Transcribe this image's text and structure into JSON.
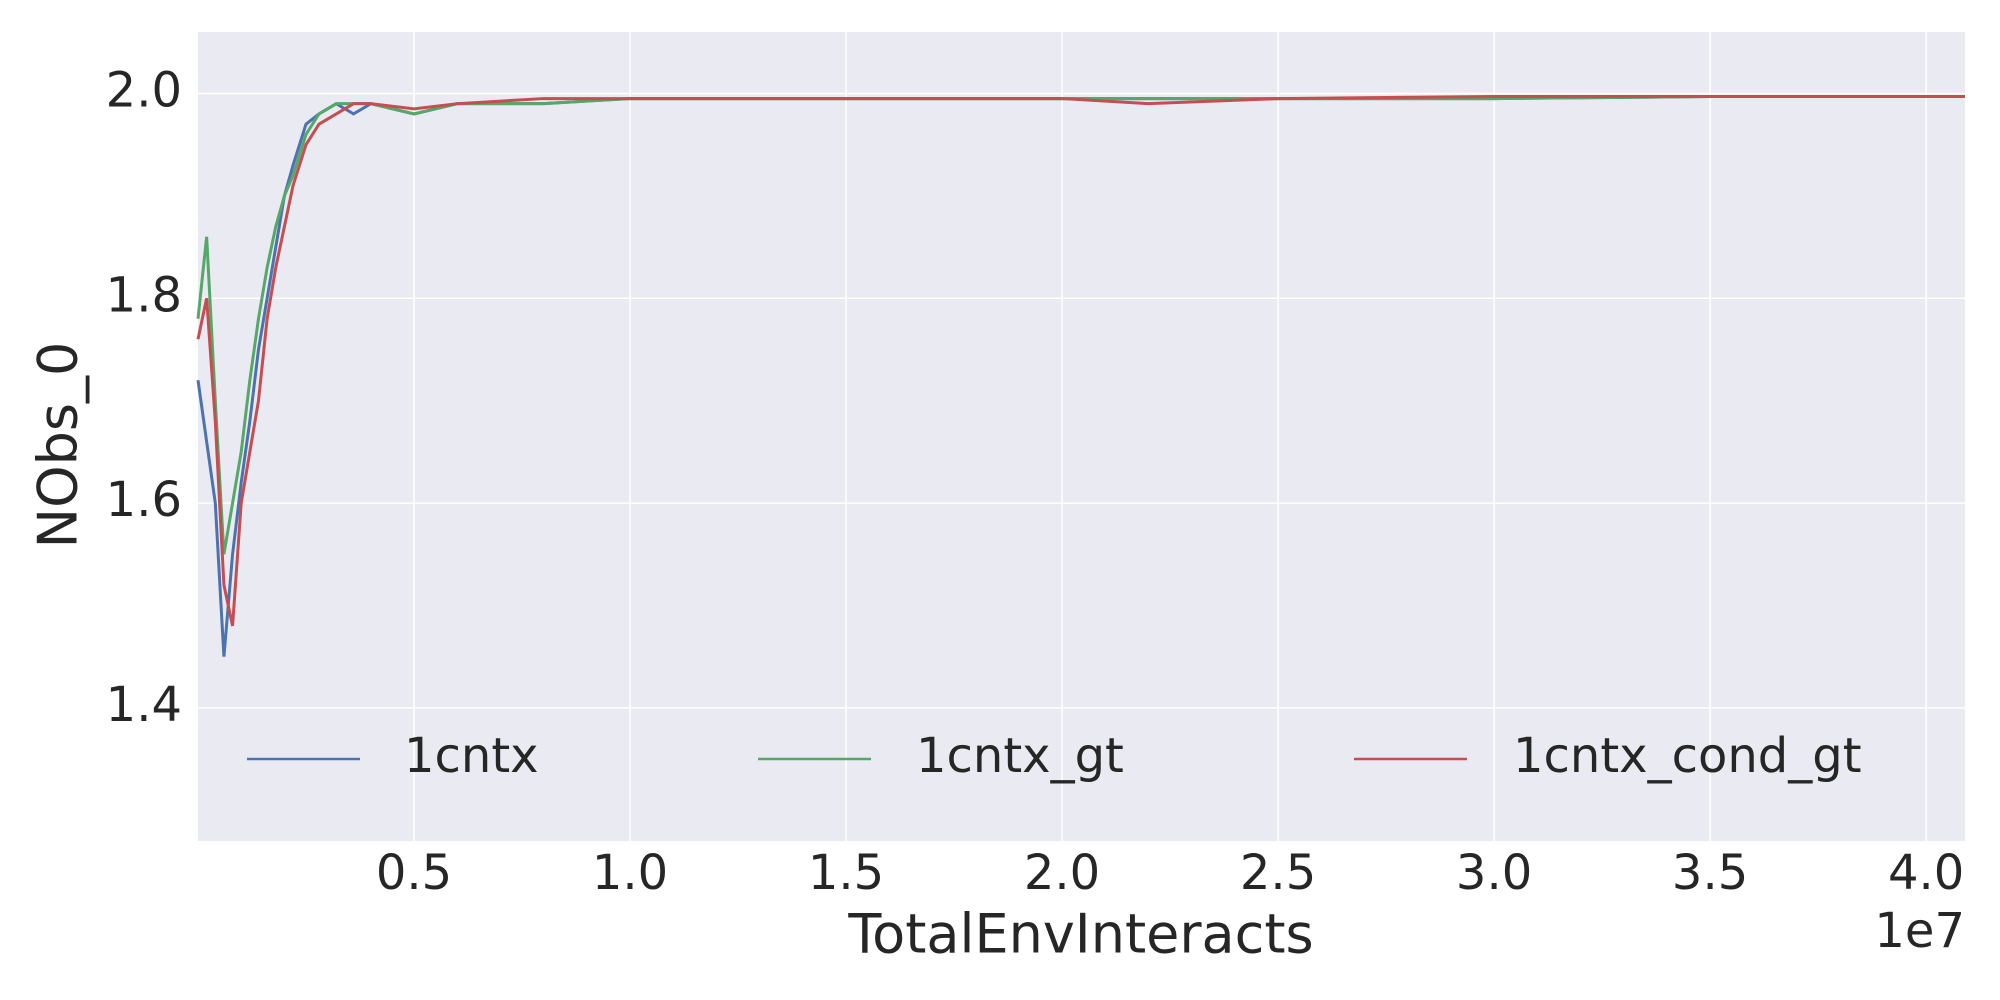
{
  "chart_data": {
    "type": "line",
    "x_label": "TotalEnvInteracts",
    "y_label": "NObs_0",
    "x_offset_label": "1e7",
    "x": [
      0,
      0.02,
      0.04,
      0.06,
      0.08,
      0.1,
      0.12,
      0.14,
      0.16,
      0.18,
      0.2,
      0.22,
      0.25,
      0.28,
      0.32,
      0.36,
      0.4,
      0.5,
      0.6,
      0.8,
      1.0,
      1.5,
      2.0,
      2.2,
      2.5,
      3.0,
      3.5,
      4.09
    ],
    "series": [
      {
        "name": "1cntx",
        "color": "#4c72b0",
        "values": [
          1.72,
          1.66,
          1.6,
          1.45,
          1.55,
          1.62,
          1.68,
          1.75,
          1.8,
          1.85,
          1.9,
          1.93,
          1.97,
          1.98,
          1.99,
          1.98,
          1.99,
          1.98,
          1.99,
          1.99,
          1.995,
          1.995,
          1.995,
          1.995,
          1.995,
          1.995,
          1.997,
          1.997
        ]
      },
      {
        "name": "1cntx_gt",
        "color": "#55a868",
        "values": [
          1.78,
          1.86,
          1.7,
          1.55,
          1.6,
          1.65,
          1.72,
          1.78,
          1.83,
          1.87,
          1.9,
          1.92,
          1.96,
          1.98,
          1.99,
          1.99,
          1.99,
          1.98,
          1.99,
          1.99,
          1.995,
          1.995,
          1.995,
          1.995,
          1.995,
          1.995,
          1.997,
          1.997
        ]
      },
      {
        "name": "1cntx_cond_gt",
        "color": "#c44e52",
        "values": [
          1.76,
          1.8,
          1.68,
          1.52,
          1.48,
          1.6,
          1.65,
          1.7,
          1.78,
          1.83,
          1.87,
          1.91,
          1.95,
          1.97,
          1.98,
          1.99,
          1.99,
          1.985,
          1.99,
          1.995,
          1.995,
          1.995,
          1.995,
          1.99,
          1.995,
          1.997,
          1.997,
          1.997
        ]
      }
    ],
    "xlim": [
      0,
      4.09
    ],
    "ylim": [
      1.27,
      2.06
    ],
    "xticks": [
      0.5,
      {
        "value": 1,
        "label": "1.0"
      },
      1.5,
      {
        "value": 2,
        "label": "2.0"
      },
      2.5,
      {
        "value": 3,
        "label": "3.0"
      },
      3.5,
      {
        "value": 4,
        "label": "4.0"
      }
    ],
    "yticks": [
      1.4,
      1.6,
      1.8,
      {
        "value": 2,
        "label": "2.0"
      }
    ],
    "grid": true,
    "legend": "lower center",
    "background": "#eaeaf2"
  }
}
